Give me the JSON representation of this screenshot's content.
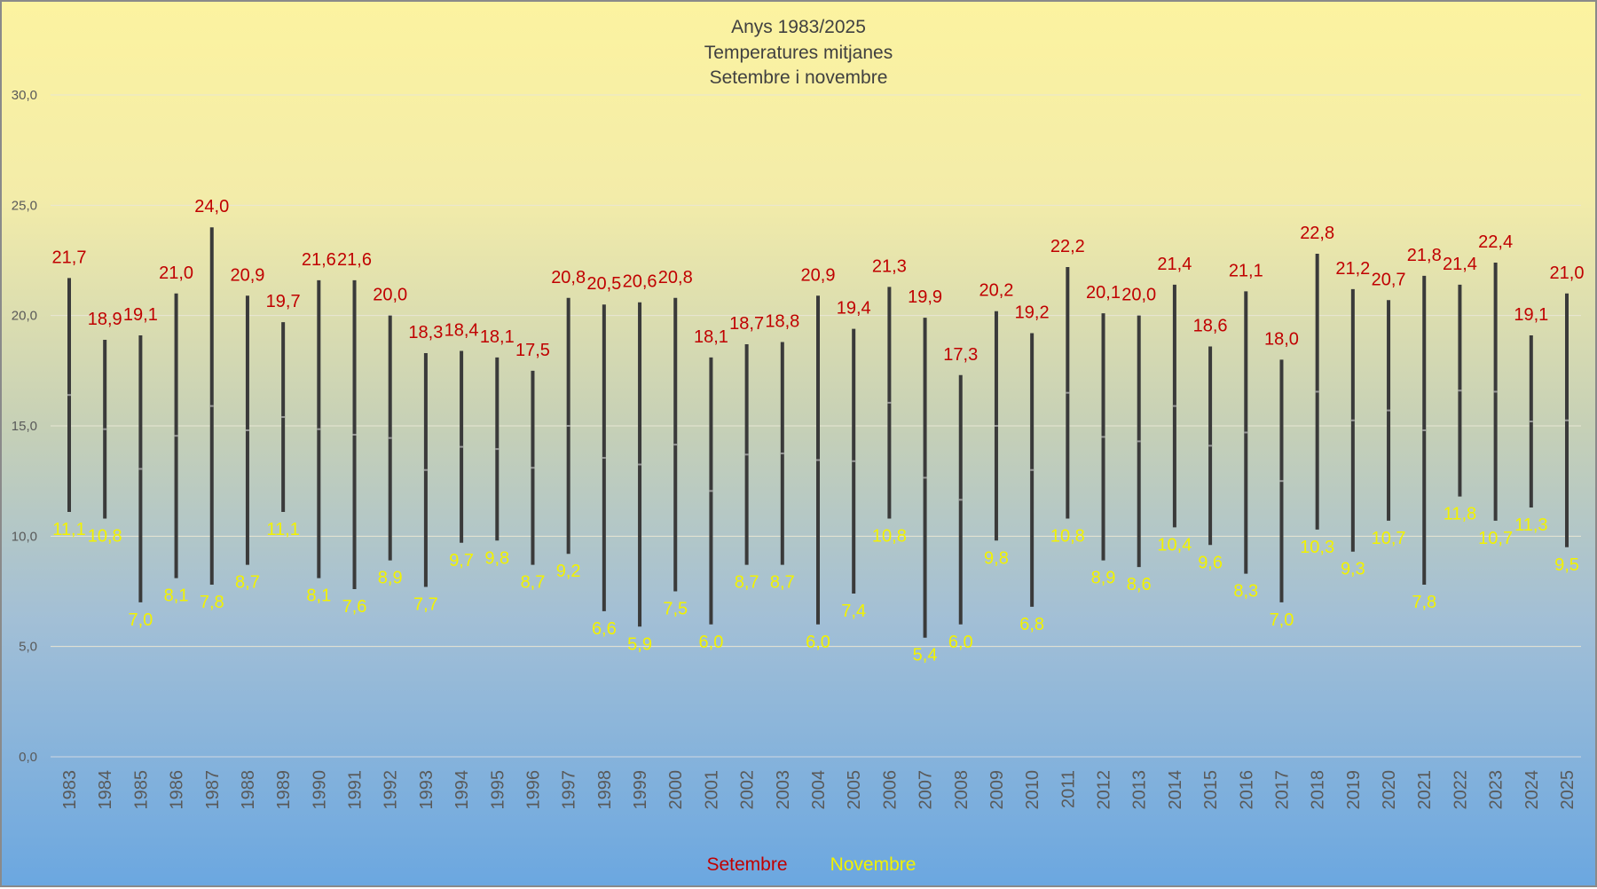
{
  "chart_data": {
    "type": "range_bar",
    "title_lines": [
      "Anys 1983/2025",
      "Temperatures mitjanes",
      "Setembre i novembre"
    ],
    "categories": [
      "1983",
      "1984",
      "1985",
      "1986",
      "1987",
      "1988",
      "1989",
      "1990",
      "1991",
      "1992",
      "1993",
      "1994",
      "1995",
      "1996",
      "1997",
      "1998",
      "1999",
      "2000",
      "2001",
      "2002",
      "2003",
      "2004",
      "2005",
      "2006",
      "2007",
      "2008",
      "2009",
      "2010",
      "2011",
      "2012",
      "2013",
      "2014",
      "2015",
      "2016",
      "2017",
      "2018",
      "2019",
      "2020",
      "2021",
      "2022",
      "2023",
      "2024",
      "2025"
    ],
    "series": [
      {
        "name": "Setembre",
        "color": "#c00000",
        "values": [
          21.7,
          18.9,
          19.1,
          21.0,
          24.0,
          20.9,
          19.7,
          21.6,
          21.6,
          20.0,
          18.3,
          18.4,
          18.1,
          17.5,
          20.8,
          20.5,
          20.6,
          20.8,
          18.1,
          18.7,
          18.8,
          20.9,
          19.4,
          21.3,
          19.9,
          17.3,
          20.2,
          19.2,
          22.2,
          20.1,
          20.0,
          21.4,
          18.6,
          21.1,
          18.0,
          22.8,
          21.2,
          20.7,
          21.8,
          21.4,
          22.4,
          19.1,
          21.0
        ],
        "labels": [
          "21,7",
          "18,9",
          "19,1",
          "21,0",
          "24,0",
          "20,9",
          "19,7",
          "21,6",
          "21,6",
          "20,0",
          "18,3",
          "18,4",
          "18,1",
          "17,5",
          "20,8",
          "20,5",
          "20,6",
          "20,8",
          "18,1",
          "18,7",
          "18,8",
          "20,9",
          "19,4",
          "21,3",
          "19,9",
          "17,3",
          "20,2",
          "19,2",
          "22,2",
          "20,1",
          "20,0",
          "21,4",
          "18,6",
          "21,1",
          "18,0",
          "22,8",
          "21,2",
          "20,7",
          "21,8",
          "21,4",
          "22,4",
          "19,1",
          "21,0"
        ]
      },
      {
        "name": "Novembre",
        "color": "#f2f200",
        "values": [
          11.1,
          10.8,
          7.0,
          8.1,
          7.8,
          8.7,
          11.1,
          8.1,
          7.6,
          8.9,
          7.7,
          9.7,
          9.8,
          8.7,
          9.2,
          6.6,
          5.9,
          7.5,
          6.0,
          8.7,
          8.7,
          6.0,
          7.4,
          10.8,
          5.4,
          6.0,
          9.8,
          6.8,
          10.8,
          8.9,
          8.6,
          10.4,
          9.6,
          8.3,
          7.0,
          10.3,
          9.3,
          10.7,
          7.8,
          11.8,
          10.7,
          11.3,
          9.5
        ],
        "labels": [
          "11,1",
          "10,8",
          "7,0",
          "8,1",
          "7,8",
          "8,7",
          "11,1",
          "8,1",
          "7,6",
          "8,9",
          "7,7",
          "9,7",
          "9,8",
          "8,7",
          "9,2",
          "6,6",
          "5,9",
          "7,5",
          "6,0",
          "8,7",
          "8,7",
          "6,0",
          "7,4",
          "10,8",
          "5,4",
          "6,0",
          "9,8",
          "6,8",
          "10,8",
          "8,9",
          "8,6",
          "10,4",
          "9,6",
          "8,3",
          "7,0",
          "10,3",
          "9,3",
          "10,7",
          "7,8",
          "11,8",
          "10,7",
          "11,3",
          "9,5"
        ]
      }
    ],
    "y_axis": {
      "min": 0,
      "max": 30,
      "ticks": [
        0,
        5,
        10,
        15,
        20,
        25,
        30
      ],
      "tick_labels": [
        "0,0",
        "5,0",
        "10,0",
        "15,0",
        "20,0",
        "25,0",
        "30,0"
      ]
    },
    "grid": true,
    "bar_color": "#3a3a3a",
    "legend_position": "bottom"
  }
}
